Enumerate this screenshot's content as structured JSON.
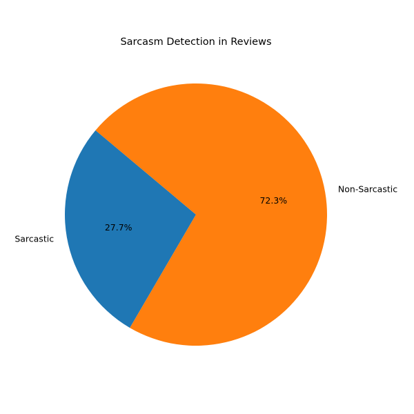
{
  "chart_data": {
    "type": "pie",
    "title": "Sarcasm Detection in Reviews",
    "start_angle_deg": 140,
    "direction": "counterclockwise",
    "slices": [
      {
        "label": "Sarcastic",
        "value": 27.7,
        "pct_label": "27.7%",
        "color": "#1f77b4"
      },
      {
        "label": "Non-Sarcastic",
        "value": 72.3,
        "pct_label": "72.3%",
        "color": "#ff7f0e"
      }
    ]
  }
}
